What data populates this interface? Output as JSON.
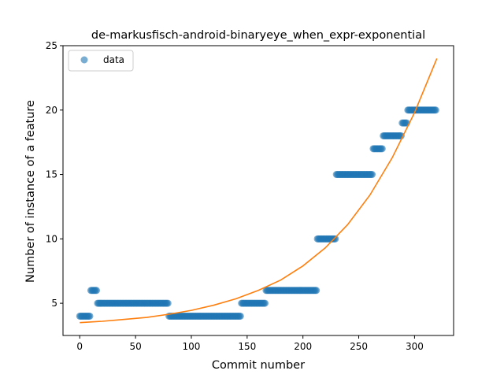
{
  "chart_data": {
    "type": "scatter",
    "title": "de-markusfisch-android-binaryeye_when_expr-exponential",
    "xlabel": "Commit number",
    "ylabel": "Number of instance of a feature",
    "xlim": [
      -15,
      335
    ],
    "ylim": [
      2.5,
      25
    ],
    "xticks": [
      0,
      50,
      100,
      150,
      200,
      250,
      300
    ],
    "yticks": [
      5,
      10,
      15,
      20,
      25
    ],
    "grid": false,
    "legend": {
      "placement": "top-left",
      "entries": [
        "data"
      ]
    },
    "colors": {
      "scatter": "#1f77b4",
      "fit": "#ff7f0e"
    },
    "series": [
      {
        "name": "data",
        "kind": "scatter",
        "segments": [
          {
            "x_start": 0,
            "x_end": 9,
            "y": 4
          },
          {
            "x_start": 10,
            "x_end": 15,
            "y": 6
          },
          {
            "x_start": 16,
            "x_end": 79,
            "y": 5
          },
          {
            "x_start": 80,
            "x_end": 144,
            "y": 4
          },
          {
            "x_start": 145,
            "x_end": 166,
            "y": 5
          },
          {
            "x_start": 167,
            "x_end": 212,
            "y": 6
          },
          {
            "x_start": 213,
            "x_end": 229,
            "y": 10
          },
          {
            "x_start": 230,
            "x_end": 262,
            "y": 15
          },
          {
            "x_start": 263,
            "x_end": 271,
            "y": 17
          },
          {
            "x_start": 272,
            "x_end": 288,
            "y": 18
          },
          {
            "x_start": 289,
            "x_end": 293,
            "y": 19
          },
          {
            "x_start": 294,
            "x_end": 319,
            "y": 20
          }
        ]
      },
      {
        "kind": "line",
        "x": [
          0,
          20,
          40,
          60,
          80,
          100,
          120,
          140,
          160,
          180,
          200,
          220,
          240,
          260,
          280,
          300,
          320
        ],
        "y": [
          3.5,
          3.6,
          3.75,
          3.9,
          4.15,
          4.45,
          4.85,
          5.35,
          6.0,
          6.8,
          7.9,
          9.3,
          11.1,
          13.4,
          16.3,
          19.8,
          24.0
        ]
      }
    ]
  }
}
